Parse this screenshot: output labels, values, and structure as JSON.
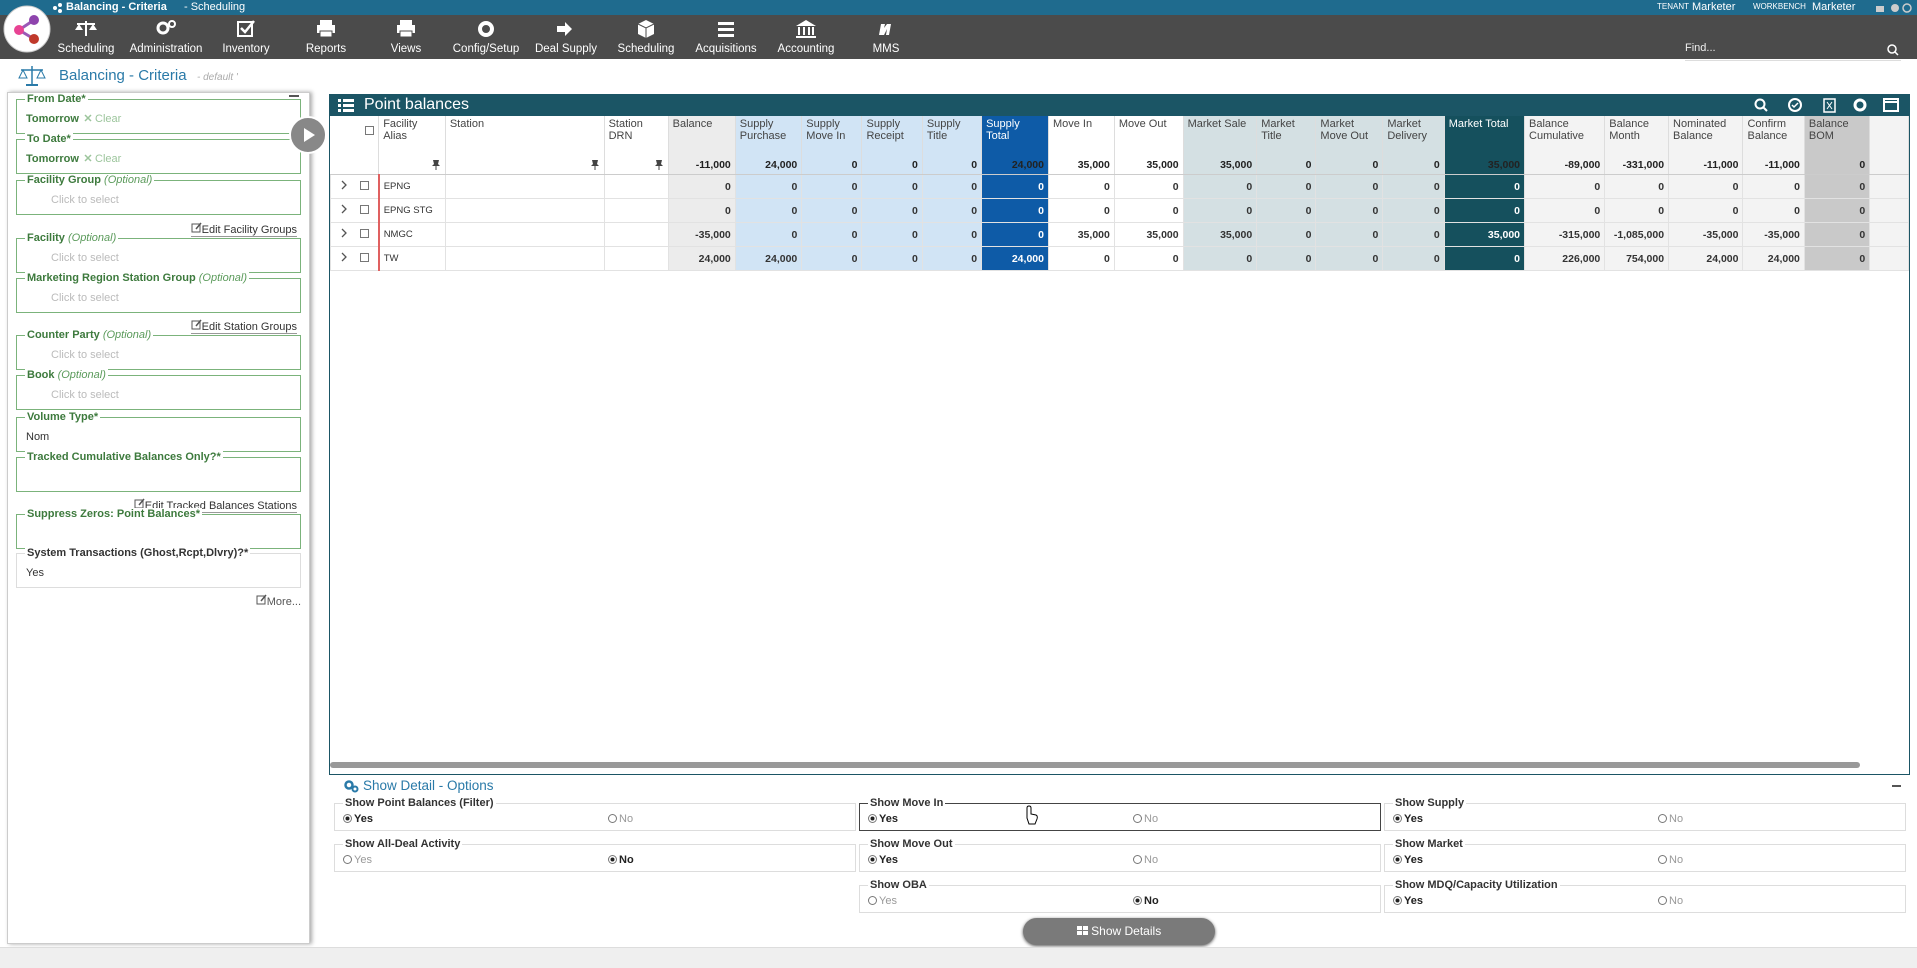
{
  "header": {
    "title": "Balancing - Criteria",
    "subtitle": "- Scheduling",
    "tenant_label": "TENANT",
    "tenant": "Marketer",
    "workbench_label": "WORKBENCH",
    "workbench": "Marketer",
    "search_placeholder": "Find..."
  },
  "nav": [
    "Scheduling",
    "Administration",
    "Inventory",
    "Reports",
    "Views",
    "Config/Setup",
    "Deal Supply",
    "Scheduling",
    "Acquisitions",
    "Accounting",
    "MMS"
  ],
  "criteria": {
    "title": "Balancing - Criteria",
    "preset": "- default '",
    "optional_label": "(Optional)",
    "placeholder": "Click to select",
    "clear": "Clear",
    "more": "More...",
    "items": [
      {
        "label": "From Date*",
        "value": "Tomorrow",
        "clearable": true
      },
      {
        "label": "To Date*",
        "value": "Tomorrow",
        "clearable": true
      },
      {
        "label": "Facility Group",
        "optional": true
      },
      {
        "link": "Edit Facility Groups"
      },
      {
        "label": "Facility",
        "optional": true
      },
      {
        "label": "Marketing Region Station Group",
        "optional": true
      },
      {
        "link": "Edit Station Groups"
      },
      {
        "label": "Counter Party",
        "optional": true
      },
      {
        "label": "Book",
        "optional": true
      },
      {
        "label": "Volume Type*",
        "value": "Nom"
      },
      {
        "label": "Tracked Cumulative Balances Only?*"
      },
      {
        "link": "Edit Tracked Balances Stations"
      },
      {
        "label": "Suppress Zeros: Point Balances*"
      },
      {
        "label": "System Transactions (Ghost,Rcpt,Dlvry)?*",
        "value": "Yes"
      }
    ]
  },
  "grid": {
    "title": "Point balances",
    "columns": [
      {
        "label": "Facility Alias"
      },
      {
        "label": "Station"
      },
      {
        "label": "Station DRN"
      },
      {
        "label": "Balance",
        "total": "-11,000"
      },
      {
        "label": "Supply Purchase",
        "total": "24,000"
      },
      {
        "label": "Supply Move In",
        "total": "0"
      },
      {
        "label": "Supply Receipt",
        "total": "0"
      },
      {
        "label": "Supply Title",
        "total": "0"
      },
      {
        "label": "Supply Total",
        "total": "24,000"
      },
      {
        "label": "Move In",
        "total": "35,000"
      },
      {
        "label": "Move Out",
        "total": "35,000"
      },
      {
        "label": "Market Sale",
        "total": "35,000"
      },
      {
        "label": "Market Title",
        "total": "0"
      },
      {
        "label": "Market Move Out",
        "total": "0"
      },
      {
        "label": "Market Delivery",
        "total": "0"
      },
      {
        "label": "Market Total",
        "total": "35,000"
      },
      {
        "label": "Balance Cumulative",
        "total": "-89,000"
      },
      {
        "label": "Balance Month",
        "total": "-331,000"
      },
      {
        "label": "Nominated Balance",
        "total": "-11,000"
      },
      {
        "label": "Confirm Balance",
        "total": "-11,000"
      },
      {
        "label": "Balance BOM",
        "total": "0"
      }
    ],
    "rows": [
      [
        "EPNG",
        null,
        null,
        "0",
        "0",
        "0",
        "0",
        "0",
        "0",
        "0",
        "0",
        "0",
        "0",
        "0",
        "0",
        "0",
        "0",
        "0",
        "0",
        "0",
        "0"
      ],
      [
        "EPNG STG",
        null,
        null,
        "0",
        "0",
        "0",
        "0",
        "0",
        "0",
        "0",
        "0",
        "0",
        "0",
        "0",
        "0",
        "0",
        "0",
        "0",
        "0",
        "0",
        "0"
      ],
      [
        "NMGC",
        null,
        null,
        "-35,000",
        "0",
        "0",
        "0",
        "0",
        "0",
        "35,000",
        "35,000",
        "35,000",
        "0",
        "0",
        "0",
        "35,000",
        "-315,000",
        "-1,085,000",
        "-35,000",
        "-35,000",
        "0"
      ],
      [
        "TW",
        null,
        null,
        "24,000",
        "24,000",
        "0",
        "0",
        "0",
        "24,000",
        "0",
        "0",
        "0",
        "0",
        "0",
        "0",
        "0",
        "226,000",
        "754,000",
        "24,000",
        "24,000",
        "0"
      ]
    ]
  },
  "detail": {
    "title": "Show Detail - Options",
    "choices": [
      "Yes",
      "No"
    ],
    "button": "Show Details",
    "options": [
      {
        "label": "Show Point Balances (Filter)",
        "yes_selected": true
      },
      {
        "label": "Show Move In",
        "yes_selected": true
      },
      {
        "label": "Show Supply",
        "yes_selected": true
      },
      {
        "label": "Show All-Deal Activity",
        "yes_selected": false
      },
      {
        "label": "Show Move Out",
        "yes_selected": true
      },
      {
        "label": "Show Market",
        "yes_selected": true
      },
      {
        "label": "Show OBA",
        "yes_selected": false
      },
      {
        "label": "Show MDQ/Capacity Utilization",
        "yes_selected": true
      }
    ]
  }
}
